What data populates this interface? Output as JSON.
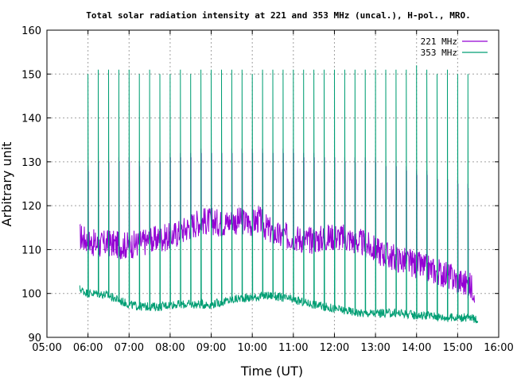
{
  "chart_data": {
    "type": "line",
    "title": "Total solar radiation intensity at 221 and 353 MHz (uncal.), H-pol., MRO.",
    "xlabel": "Time (UT)",
    "ylabel": "Arbitrary unit",
    "xlim": [
      "05:00",
      "16:00"
    ],
    "ylim": [
      90,
      160
    ],
    "xticks": [
      "05:00",
      "06:00",
      "07:00",
      "08:00",
      "09:00",
      "10:00",
      "11:00",
      "12:00",
      "13:00",
      "14:00",
      "15:00",
      "16:00"
    ],
    "yticks": [
      90,
      100,
      110,
      120,
      130,
      140,
      150,
      160
    ],
    "grid": true,
    "legend_position": "top-right",
    "series": [
      {
        "name": "221 MHz",
        "color": "#9400d3",
        "baseline": [
          [
            "05:48",
            113.0
          ],
          [
            "06:00",
            112.0
          ],
          [
            "06:15",
            111.0
          ],
          [
            "06:30",
            111.5
          ],
          [
            "06:45",
            111.0
          ],
          [
            "07:00",
            111.0
          ],
          [
            "07:15",
            111.5
          ],
          [
            "07:30",
            112.0
          ],
          [
            "07:45",
            112.5
          ],
          [
            "08:00",
            113.0
          ],
          [
            "08:15",
            114.0
          ],
          [
            "08:30",
            115.5
          ],
          [
            "08:45",
            116.5
          ],
          [
            "09:00",
            116.5
          ],
          [
            "09:15",
            116.0
          ],
          [
            "09:30",
            116.5
          ],
          [
            "09:45",
            116.5
          ],
          [
            "10:00",
            116.0
          ],
          [
            "10:10",
            117.0
          ],
          [
            "10:20",
            115.0
          ],
          [
            "10:40",
            113.0
          ],
          [
            "11:00",
            113.0
          ],
          [
            "11:20",
            112.0
          ],
          [
            "11:40",
            112.5
          ],
          [
            "12:00",
            113.0
          ],
          [
            "12:20",
            112.5
          ],
          [
            "12:40",
            111.5
          ],
          [
            "13:00",
            110.0
          ],
          [
            "13:20",
            108.5
          ],
          [
            "13:40",
            107.5
          ],
          [
            "14:00",
            106.5
          ],
          [
            "14:20",
            105.5
          ],
          [
            "14:40",
            104.5
          ],
          [
            "15:00",
            103.0
          ],
          [
            "15:15",
            102.0
          ],
          [
            "15:25",
            101.0
          ]
        ],
        "peaks": [
          [
            "06:00",
            129
          ],
          [
            "06:15",
            131
          ],
          [
            "06:30",
            131
          ],
          [
            "06:45",
            131
          ],
          [
            "07:00",
            131
          ],
          [
            "07:15",
            130
          ],
          [
            "07:30",
            131
          ],
          [
            "07:45",
            131
          ],
          [
            "08:00",
            132
          ],
          [
            "08:15",
            132
          ],
          [
            "08:30",
            132
          ],
          [
            "08:45",
            133
          ],
          [
            "09:00",
            133
          ],
          [
            "09:15",
            133
          ],
          [
            "09:30",
            133
          ],
          [
            "09:45",
            133
          ],
          [
            "10:00",
            133
          ],
          [
            "10:15",
            133
          ],
          [
            "10:30",
            133
          ],
          [
            "10:45",
            133
          ],
          [
            "11:00",
            133
          ],
          [
            "11:15",
            132
          ],
          [
            "11:30",
            132
          ],
          [
            "11:45",
            132
          ],
          [
            "12:00",
            132
          ],
          [
            "12:15",
            131
          ],
          [
            "12:30",
            131
          ],
          [
            "12:45",
            131
          ],
          [
            "13:00",
            131
          ],
          [
            "13:15",
            130
          ],
          [
            "13:30",
            130
          ],
          [
            "13:45",
            129
          ],
          [
            "14:00",
            128
          ],
          [
            "14:15",
            128
          ],
          [
            "14:30",
            127
          ],
          [
            "14:45",
            127
          ],
          [
            "15:00",
            126
          ],
          [
            "15:15",
            125
          ]
        ]
      },
      {
        "name": "353 MHz",
        "color": "#009e73",
        "baseline": [
          [
            "05:48",
            101.0
          ],
          [
            "06:00",
            100.0
          ],
          [
            "06:15",
            100.0
          ],
          [
            "06:30",
            99.5
          ],
          [
            "06:45",
            98.5
          ],
          [
            "07:00",
            97.5
          ],
          [
            "07:15",
            97.0
          ],
          [
            "07:30",
            97.0
          ],
          [
            "07:45",
            97.0
          ],
          [
            "08:00",
            97.5
          ],
          [
            "08:15",
            97.5
          ],
          [
            "08:30",
            97.5
          ],
          [
            "08:45",
            97.5
          ],
          [
            "09:00",
            97.5
          ],
          [
            "09:15",
            98.0
          ],
          [
            "09:30",
            98.5
          ],
          [
            "09:45",
            99.0
          ],
          [
            "10:00",
            99.0
          ],
          [
            "10:15",
            99.5
          ],
          [
            "10:30",
            99.5
          ],
          [
            "10:45",
            99.0
          ],
          [
            "11:00",
            98.5
          ],
          [
            "11:15",
            98.0
          ],
          [
            "11:30",
            97.5
          ],
          [
            "11:45",
            97.0
          ],
          [
            "12:00",
            96.5
          ],
          [
            "12:20",
            96.0
          ],
          [
            "12:40",
            95.5
          ],
          [
            "13:00",
            95.5
          ],
          [
            "13:20",
            95.5
          ],
          [
            "13:40",
            95.5
          ],
          [
            "14:00",
            95.0
          ],
          [
            "14:20",
            95.0
          ],
          [
            "14:40",
            94.5
          ],
          [
            "15:00",
            94.5
          ],
          [
            "15:15",
            94.5
          ],
          [
            "15:30",
            94.0
          ]
        ],
        "peaks": [
          [
            "06:00",
            150
          ],
          [
            "06:15",
            151
          ],
          [
            "06:30",
            151
          ],
          [
            "06:45",
            151
          ],
          [
            "07:00",
            151
          ],
          [
            "07:15",
            150
          ],
          [
            "07:30",
            151
          ],
          [
            "07:45",
            150
          ],
          [
            "08:00",
            150
          ],
          [
            "08:15",
            151
          ],
          [
            "08:30",
            150
          ],
          [
            "08:45",
            151
          ],
          [
            "09:00",
            151
          ],
          [
            "09:15",
            151
          ],
          [
            "09:30",
            151
          ],
          [
            "09:45",
            151
          ],
          [
            "10:00",
            150
          ],
          [
            "10:15",
            151
          ],
          [
            "10:30",
            151
          ],
          [
            "10:45",
            151
          ],
          [
            "11:00",
            151
          ],
          [
            "11:15",
            151
          ],
          [
            "11:30",
            151
          ],
          [
            "11:45",
            151
          ],
          [
            "12:00",
            151
          ],
          [
            "12:15",
            151
          ],
          [
            "12:30",
            151
          ],
          [
            "12:45",
            151
          ],
          [
            "13:00",
            151
          ],
          [
            "13:15",
            151
          ],
          [
            "13:30",
            151
          ],
          [
            "13:45",
            151
          ],
          [
            "14:00",
            152
          ],
          [
            "14:15",
            151
          ],
          [
            "14:30",
            150
          ],
          [
            "14:45",
            151
          ],
          [
            "15:00",
            150
          ],
          [
            "15:15",
            150
          ]
        ]
      }
    ]
  }
}
